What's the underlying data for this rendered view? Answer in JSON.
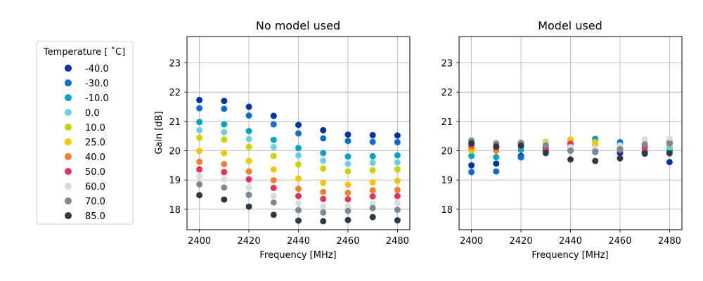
{
  "legend": {
    "title": "Temperature [$^\\circ$C]",
    "title_display": "Temperature [ ˚C]",
    "entries": [
      {
        "label": "-40.0",
        "color": "#0033a0"
      },
      {
        "label": "-30.0",
        "color": "#0a6fcc"
      },
      {
        "label": "-10.0",
        "color": "#00a3c4"
      },
      {
        "label": "0.0",
        "color": "#6cd0e0"
      },
      {
        "label": "10.0",
        "color": "#c8d400"
      },
      {
        "label": "25.0",
        "color": "#f5c400"
      },
      {
        "label": "40.0",
        "color": "#f08030"
      },
      {
        "label": "50.0",
        "color": "#e8325a"
      },
      {
        "label": "60.0",
        "color": "#d8dcdc"
      },
      {
        "label": "70.0",
        "color": "#7a8a94"
      },
      {
        "label": "85.0",
        "color": "#2e3a42"
      }
    ]
  },
  "chart_data": [
    {
      "type": "scatter",
      "title": "No model used",
      "xlabel": "Frequency [MHz]",
      "ylabel": "Gain [dB]",
      "xlim": [
        2395,
        2485
      ],
      "ylim": [
        17.3,
        23.9
      ],
      "xticks": [
        2400,
        2420,
        2440,
        2460,
        2480
      ],
      "yticks": [
        18,
        19,
        20,
        21,
        22,
        23
      ],
      "grid": true,
      "x": [
        2400,
        2410,
        2420,
        2430,
        2440,
        2450,
        2460,
        2470,
        2480
      ],
      "series": [
        {
          "name": "-40.0",
          "values": [
            21.73,
            21.7,
            21.5,
            21.19,
            20.88,
            20.7,
            20.55,
            20.53,
            20.52
          ]
        },
        {
          "name": "-30.0",
          "values": [
            21.45,
            21.43,
            21.2,
            20.9,
            20.59,
            20.42,
            20.33,
            20.3,
            20.29
          ]
        },
        {
          "name": "-10.0",
          "values": [
            20.98,
            20.9,
            20.67,
            20.37,
            20.09,
            19.92,
            19.8,
            19.81,
            19.84
          ]
        },
        {
          "name": "0.0",
          "values": [
            20.7,
            20.63,
            20.4,
            20.12,
            19.84,
            19.66,
            19.55,
            19.59,
            19.6
          ]
        },
        {
          "name": "10.0",
          "values": [
            20.44,
            20.38,
            20.13,
            19.82,
            19.53,
            19.39,
            19.29,
            19.33,
            19.36
          ]
        },
        {
          "name": "25.0",
          "values": [
            19.99,
            19.92,
            19.65,
            19.36,
            19.05,
            18.9,
            18.84,
            18.92,
            18.97
          ]
        },
        {
          "name": "40.0",
          "values": [
            19.62,
            19.54,
            19.29,
            18.99,
            18.7,
            18.59,
            18.56,
            18.65,
            18.66
          ]
        },
        {
          "name": "50.0",
          "values": [
            19.36,
            19.27,
            19.02,
            18.73,
            18.45,
            18.35,
            18.34,
            18.44,
            18.45
          ]
        },
        {
          "name": "60.0",
          "values": [
            19.12,
            19.02,
            18.75,
            18.46,
            18.2,
            18.1,
            18.09,
            18.19,
            18.21
          ]
        },
        {
          "name": "70.0",
          "values": [
            18.85,
            18.74,
            18.49,
            18.23,
            17.97,
            17.89,
            17.94,
            18.04,
            17.98
          ]
        },
        {
          "name": "85.0",
          "values": [
            18.48,
            18.33,
            18.09,
            17.81,
            17.61,
            17.59,
            17.63,
            17.73,
            17.62
          ]
        }
      ]
    },
    {
      "type": "scatter",
      "title": "Model used",
      "xlabel": "Frequency [MHz]",
      "ylabel": "",
      "xlim": [
        2395,
        2485
      ],
      "ylim": [
        17.3,
        23.9
      ],
      "xticks": [
        2400,
        2420,
        2440,
        2460,
        2480
      ],
      "yticks": [
        18,
        19,
        20,
        21,
        22,
        23
      ],
      "grid": true,
      "x": [
        2400,
        2410,
        2420,
        2430,
        2440,
        2450,
        2460,
        2470,
        2480
      ],
      "series": [
        {
          "name": "-40.0",
          "values": [
            19.5,
            19.56,
            19.82,
            19.98,
            20.0,
            19.96,
            19.92,
            19.95,
            19.61
          ]
        },
        {
          "name": "-30.0",
          "values": [
            19.27,
            19.29,
            19.77,
            20.03,
            20.03,
            20.4,
            20.29,
            19.93,
            19.97
          ]
        },
        {
          "name": "-10.0",
          "values": [
            19.82,
            19.78,
            20.03,
            20.13,
            20.01,
            20.36,
            20.2,
            19.9,
            20.02
          ]
        },
        {
          "name": "0.0",
          "values": [
            20.1,
            20.05,
            20.15,
            20.19,
            20.05,
            20.2,
            20.1,
            20.15,
            20.12
          ]
        },
        {
          "name": "10.0",
          "values": [
            20.0,
            20.05,
            20.2,
            20.3,
            20.38,
            20.3,
            20.05,
            20.2,
            20.23
          ]
        },
        {
          "name": "25.0",
          "values": [
            20.08,
            20.1,
            20.22,
            20.27,
            20.33,
            20.22,
            20.08,
            20.25,
            20.26
          ]
        },
        {
          "name": "40.0",
          "values": [
            20.12,
            20.0,
            20.19,
            20.18,
            20.15,
            20.05,
            20.08,
            20.18,
            20.3
          ]
        },
        {
          "name": "50.0",
          "values": [
            20.2,
            20.12,
            20.23,
            20.1,
            20.24,
            20.02,
            20.02,
            20.1,
            20.28
          ]
        },
        {
          "name": "60.0",
          "values": [
            20.38,
            20.28,
            20.3,
            20.23,
            20.12,
            20.08,
            20.18,
            20.38,
            20.41
          ]
        },
        {
          "name": "70.0",
          "values": [
            20.34,
            20.24,
            20.26,
            20.19,
            20.0,
            19.97,
            20.05,
            20.21,
            20.25
          ]
        },
        {
          "name": "85.0",
          "values": [
            20.25,
            20.14,
            20.17,
            19.92,
            19.7,
            19.65,
            19.74,
            19.9,
            19.91
          ]
        }
      ]
    }
  ]
}
